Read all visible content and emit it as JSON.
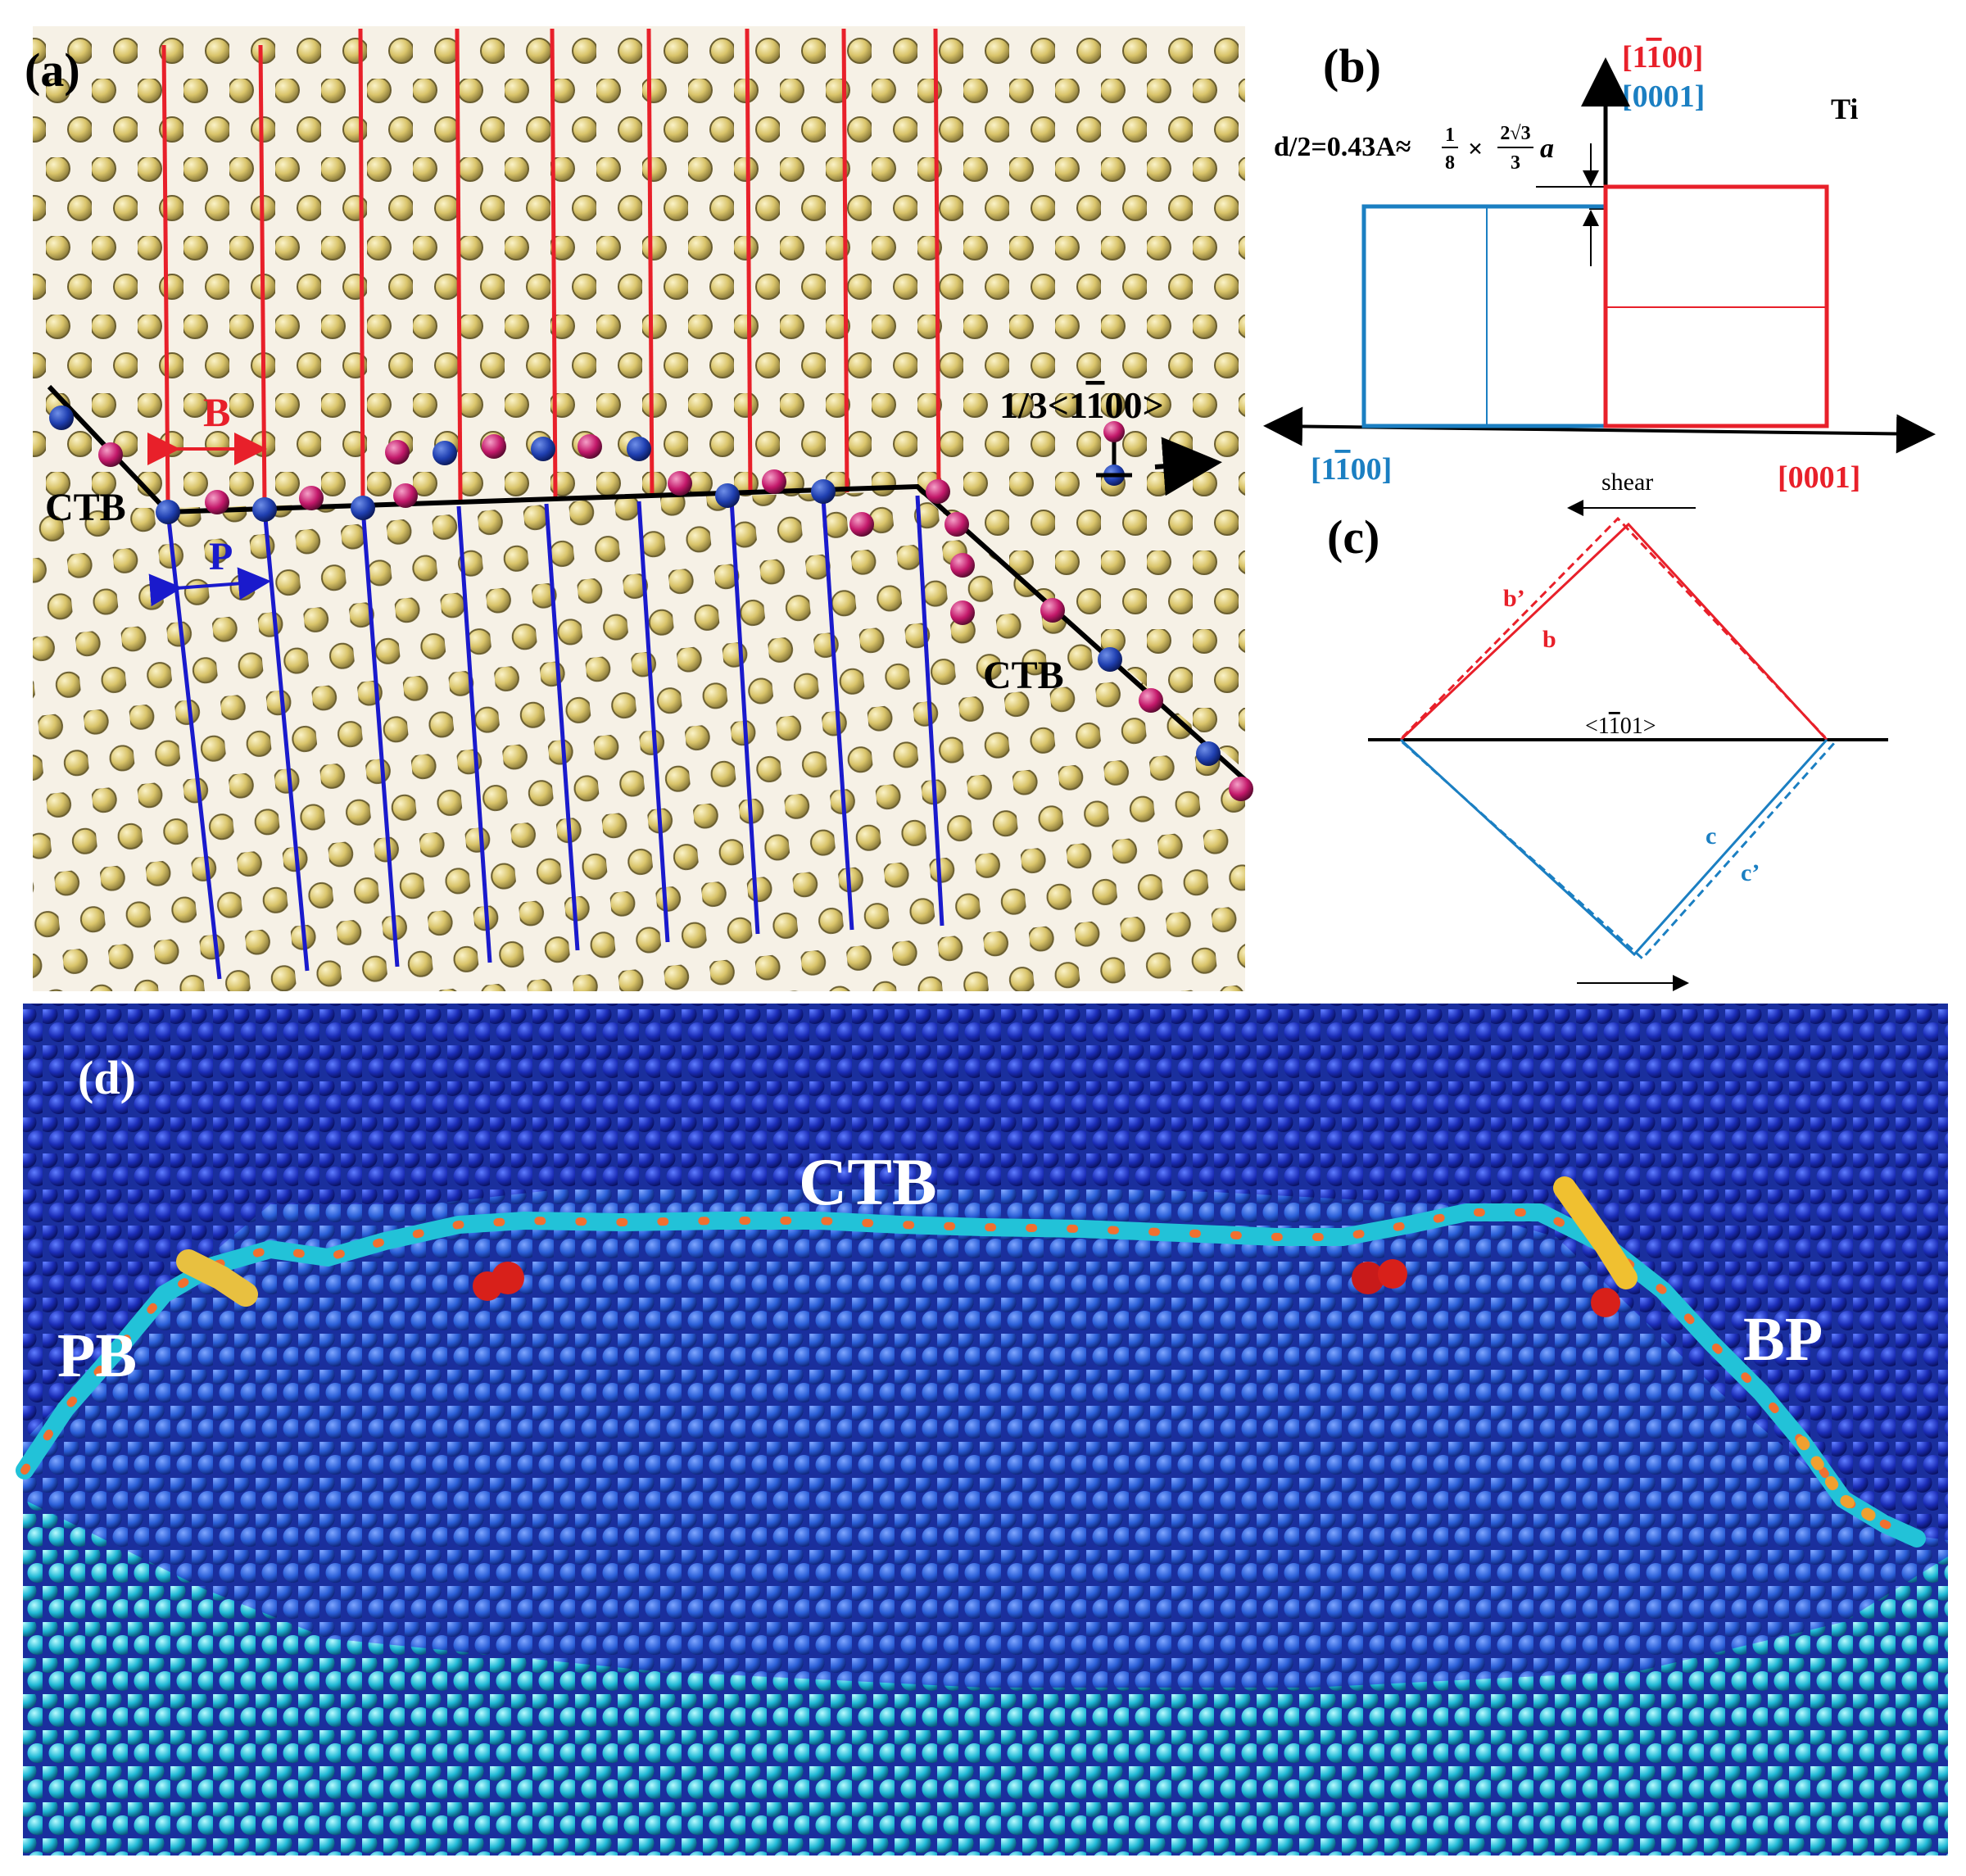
{
  "figure": {
    "colors": {
      "atom_fill": "#d9c46a",
      "atom_stroke": "#5a5030",
      "red": "#e8202a",
      "blue_line": "#1a1acc",
      "steel_blue": "#1b7fc2",
      "magenta": "#c3186a",
      "navy_atom": "#1f4fb0",
      "deep_blue": "#1a2f9e",
      "cyan": "#22c2d8"
    },
    "panel_a": {
      "label": "(a)",
      "ctb_left": "CTB",
      "ctb_right": "CTB",
      "b_label": "B",
      "p_label": "P",
      "direction_prefix": "1/3<1",
      "direction_bar_digit": "1",
      "direction_suffix": "00>"
    },
    "panel_b": {
      "label": "(b)",
      "top_red_prefix": "[1",
      "top_red_bar": "1",
      "top_red_suffix": "00]",
      "top_blue": "[0001]",
      "element": "Ti",
      "d_formula_prefix": "d/2=0.43A≈",
      "frac1_num": "1",
      "frac1_den": "8",
      "times": "×",
      "frac2_num": "2√3",
      "frac2_den": "3",
      "lattice_a": "a",
      "bottom_left_prefix": "[1",
      "bottom_left_bar": "1",
      "bottom_left_suffix": "00]",
      "bottom_right": "[0001]"
    },
    "panel_c": {
      "label": "(c)",
      "shear": "shear",
      "b_prime": "b’",
      "b": "b",
      "c": "c",
      "c_prime": "c’",
      "axis_prefix": "<1",
      "axis_bar": "1",
      "axis_suffix": "01>"
    },
    "panel_d": {
      "label": "(d)",
      "ctb": "CTB",
      "pb": "PB",
      "bp": "BP"
    }
  }
}
